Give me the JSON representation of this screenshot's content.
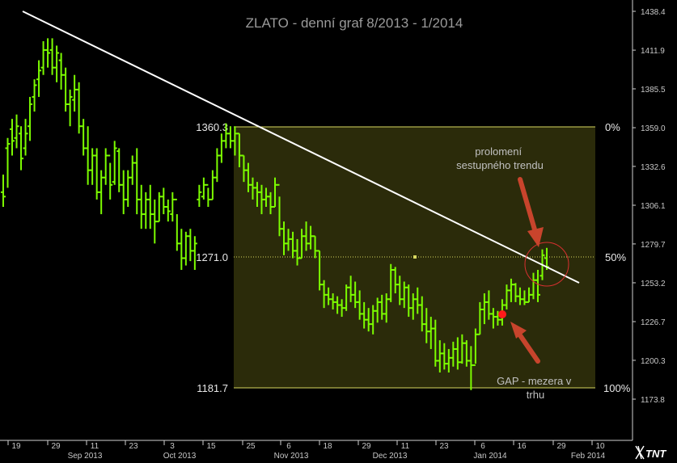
{
  "chart_data": {
    "type": "ohlc",
    "title": "ZLATO - denní graf 8/2013 - 1/2014",
    "y_ticks": [
      "1438.4",
      "1411.9",
      "1385.5",
      "1359.0",
      "1332.6",
      "1306.1",
      "1279.7",
      "1253.2",
      "1226.7",
      "1200.3",
      "1173.8"
    ],
    "x_day_ticks": [
      "19",
      "29",
      "11",
      "23",
      "3",
      "15",
      "25",
      "6",
      "18",
      "29",
      "11",
      "23",
      "6",
      "16",
      "29",
      "10"
    ],
    "x_month_labels": [
      "Sep 2013",
      "Oct 2013",
      "Nov 2013",
      "Dec 2013",
      "Jan 2014",
      "Feb 2014"
    ],
    "fib_levels": [
      {
        "price_label": "1360.3",
        "pct_label": "0%"
      },
      {
        "price_label": "1271.0",
        "pct_label": "50%"
      },
      {
        "price_label": "1181.7",
        "pct_label": "100%"
      }
    ],
    "annotations": {
      "breakout": "prolomení\nsestupného trendu",
      "gap": "GAP - mezera v\ntrhu"
    },
    "trendline": "descending resistance line",
    "colors": {
      "background": "#000000",
      "bars": "#7cfc00",
      "fib_zone": "#2b2b0a",
      "fib_line": "#d8d860",
      "trendline": "#ffffff",
      "arrow": "#c8442c",
      "circle": "#d83030",
      "gap_dot": "#ff1a1a"
    },
    "series": [
      {
        "values": [
          [
            1327,
            1305,
            1315,
            1312
          ],
          [
            1352,
            1318,
            1345,
            1348
          ],
          [
            1365,
            1340,
            1358,
            1350
          ],
          [
            1368,
            1345,
            1352,
            1360
          ],
          [
            1360,
            1330,
            1355,
            1338
          ],
          [
            1365,
            1340,
            1345,
            1355
          ],
          [
            1380,
            1350,
            1360,
            1375
          ],
          [
            1392,
            1370,
            1380,
            1388
          ],
          [
            1405,
            1380,
            1392,
            1398
          ],
          [
            1418,
            1395,
            1400,
            1412
          ],
          [
            1420,
            1400,
            1412,
            1410
          ],
          [
            1420,
            1395,
            1412,
            1400
          ],
          [
            1415,
            1390,
            1400,
            1410
          ],
          [
            1410,
            1385,
            1405,
            1395
          ],
          [
            1400,
            1370,
            1395,
            1375
          ],
          [
            1385,
            1360,
            1375,
            1380
          ],
          [
            1395,
            1370,
            1378,
            1385
          ],
          [
            1390,
            1355,
            1385,
            1360
          ],
          [
            1365,
            1340,
            1360,
            1345
          ],
          [
            1360,
            1320,
            1345,
            1330
          ],
          [
            1345,
            1320,
            1330,
            1340
          ],
          [
            1345,
            1310,
            1340,
            1315
          ],
          [
            1330,
            1300,
            1315,
            1325
          ],
          [
            1345,
            1320,
            1325,
            1340
          ],
          [
            1335,
            1310,
            1340,
            1320
          ],
          [
            1350,
            1320,
            1322,
            1345
          ],
          [
            1345,
            1315,
            1343,
            1320
          ],
          [
            1330,
            1300,
            1320,
            1310
          ],
          [
            1330,
            1305,
            1310,
            1325
          ],
          [
            1340,
            1320,
            1325,
            1335
          ],
          [
            1345,
            1300,
            1335,
            1310
          ],
          [
            1320,
            1290,
            1310,
            1300
          ],
          [
            1315,
            1290,
            1300,
            1310
          ],
          [
            1320,
            1290,
            1310,
            1300
          ],
          [
            1310,
            1280,
            1300,
            1295
          ],
          [
            1315,
            1295,
            1295,
            1312
          ],
          [
            1318,
            1300,
            1312,
            1305
          ],
          [
            1310,
            1295,
            1305,
            1302
          ],
          [
            1315,
            1295,
            1300,
            1310
          ],
          [
            1300,
            1275,
            1310,
            1280
          ],
          [
            1290,
            1262,
            1280,
            1270
          ],
          [
            1288,
            1265,
            1270,
            1285
          ],
          [
            1290,
            1268,
            1285,
            1275
          ],
          [
            1285,
            1262,
            1275,
            1280
          ],
          [
            1320,
            1305,
            1310,
            1315
          ],
          [
            1325,
            1310,
            1312,
            1320
          ],
          [
            1318,
            1305,
            1320,
            1310
          ],
          [
            1330,
            1310,
            1310,
            1325
          ],
          [
            1345,
            1322,
            1325,
            1340
          ],
          [
            1355,
            1335,
            1340,
            1350
          ],
          [
            1362,
            1345,
            1350,
            1355
          ],
          [
            1360,
            1345,
            1355,
            1350
          ],
          [
            1360,
            1340,
            1350,
            1355
          ],
          [
            1355,
            1332,
            1355,
            1340
          ],
          [
            1340,
            1322,
            1340,
            1330
          ],
          [
            1335,
            1315,
            1330,
            1320
          ],
          [
            1325,
            1310,
            1320,
            1318
          ],
          [
            1322,
            1305,
            1318,
            1315
          ],
          [
            1320,
            1300,
            1315,
            1310
          ],
          [
            1318,
            1305,
            1310,
            1312
          ],
          [
            1315,
            1300,
            1312,
            1305
          ],
          [
            1325,
            1305,
            1305,
            1320
          ],
          [
            1312,
            1285,
            1320,
            1290
          ],
          [
            1295,
            1272,
            1290,
            1280
          ],
          [
            1290,
            1275,
            1280,
            1283
          ],
          [
            1288,
            1270,
            1283,
            1275
          ],
          [
            1283,
            1265,
            1275,
            1270
          ],
          [
            1290,
            1270,
            1270,
            1285
          ],
          [
            1295,
            1275,
            1285,
            1280
          ],
          [
            1292,
            1276,
            1280,
            1285
          ],
          [
            1285,
            1270,
            1285,
            1275
          ],
          [
            1275,
            1248,
            1275,
            1252
          ],
          [
            1255,
            1236,
            1252,
            1245
          ],
          [
            1250,
            1238,
            1245,
            1242
          ],
          [
            1246,
            1235,
            1242,
            1240
          ],
          [
            1244,
            1232,
            1240,
            1238
          ],
          [
            1242,
            1230,
            1238,
            1236
          ],
          [
            1252,
            1234,
            1236,
            1250
          ],
          [
            1258,
            1240,
            1250,
            1245
          ],
          [
            1254,
            1236,
            1245,
            1240
          ],
          [
            1248,
            1228,
            1240,
            1232
          ],
          [
            1240,
            1222,
            1232,
            1228
          ],
          [
            1236,
            1220,
            1228,
            1225
          ],
          [
            1238,
            1218,
            1225,
            1234
          ],
          [
            1243,
            1226,
            1234,
            1240
          ],
          [
            1245,
            1228,
            1240,
            1232
          ],
          [
            1246,
            1226,
            1232,
            1242
          ],
          [
            1266,
            1240,
            1242,
            1262
          ],
          [
            1264,
            1246,
            1262,
            1252
          ],
          [
            1258,
            1238,
            1252,
            1242
          ],
          [
            1254,
            1236,
            1242,
            1250
          ],
          [
            1252,
            1230,
            1250,
            1236
          ],
          [
            1246,
            1228,
            1236,
            1242
          ],
          [
            1250,
            1232,
            1242,
            1238
          ],
          [
            1244,
            1220,
            1238,
            1225
          ],
          [
            1236,
            1212,
            1225,
            1220
          ],
          [
            1230,
            1208,
            1220,
            1222
          ],
          [
            1228,
            1196,
            1222,
            1200
          ],
          [
            1214,
            1192,
            1200,
            1205
          ],
          [
            1212,
            1194,
            1205,
            1198
          ],
          [
            1208,
            1192,
            1198,
            1202
          ],
          [
            1213,
            1196,
            1202,
            1208
          ],
          [
            1216,
            1194,
            1208,
            1199
          ],
          [
            1218,
            1198,
            1199,
            1212
          ],
          [
            1214,
            1196,
            1212,
            1200
          ],
          [
            1210,
            1180,
            1200,
            1197
          ],
          [
            1222,
            1198,
            1197,
            1218
          ],
          [
            1240,
            1218,
            1218,
            1235
          ],
          [
            1246,
            1225,
            1235,
            1240
          ],
          [
            1248,
            1228,
            1240,
            1232
          ],
          [
            1236,
            1222,
            1232,
            1230
          ],
          [
            1234,
            1224,
            1230,
            1228
          ],
          [
            1242,
            1224,
            1228,
            1238
          ],
          [
            1252,
            1235,
            1238,
            1248
          ],
          [
            1256,
            1240,
            1248,
            1252
          ],
          [
            1253,
            1240,
            1252,
            1244
          ],
          [
            1250,
            1238,
            1244,
            1242
          ],
          [
            1248,
            1238,
            1242,
            1240
          ],
          [
            1250,
            1240,
            1240,
            1245
          ],
          [
            1260,
            1242,
            1245,
            1255
          ],
          [
            1262,
            1240,
            1255,
            1245
          ],
          [
            1276,
            1255,
            1258,
            1272
          ],
          [
            1277,
            1262,
            1270,
            1264
          ]
        ]
      }
    ]
  }
}
